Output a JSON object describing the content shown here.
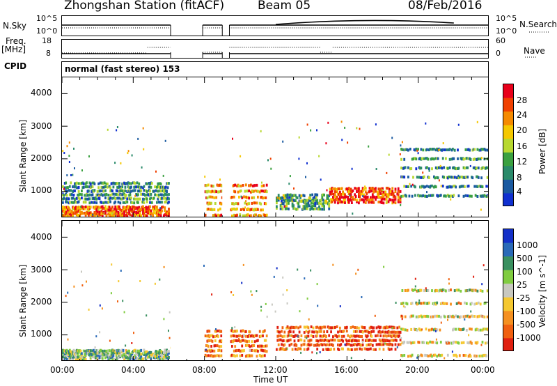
{
  "header": {
    "station": "Zhongshan Station (fitACF)",
    "beam": "Beam 05",
    "date": "08/Feb/2016"
  },
  "left_labels": {
    "nsky": "N.Sky",
    "freq": "Freq.",
    "freq_unit": "[MHz]",
    "cpid": "CPID"
  },
  "right_labels": {
    "nsearch": "N.Search",
    "nave": "Nave"
  },
  "cpid_text": "normal (fast stereo) 153",
  "nsky_ticks": {
    "top": "10^5",
    "bottom": "10^0"
  },
  "nsearch_ticks": {
    "top": "10^5",
    "bottom": "10^0"
  },
  "freq_ticks": {
    "top": "18",
    "bottom": "8"
  },
  "nave_ticks": {
    "top": "60",
    "bottom": "0"
  },
  "power_colorbar": {
    "label": "Power [dB]",
    "ticks": [
      "28",
      "24",
      "20",
      "16",
      "12",
      "8",
      "4"
    ],
    "colors": [
      "#e8001a",
      "#f04000",
      "#f58a00",
      "#f5c800",
      "#b8d830",
      "#3aa040",
      "#2a8a6a",
      "#1a5aa0",
      "#1030d0"
    ]
  },
  "velocity_colorbar": {
    "label": "Velocity [m s^-1]",
    "ticks": [
      "1000",
      "500",
      "100",
      "25",
      "-25",
      "-100",
      "-500",
      "-1000"
    ],
    "colors": [
      "#1430c8",
      "#2a6ab8",
      "#3a9060",
      "#80cc40",
      "#c8c8c0",
      "#f5c830",
      "#f59020",
      "#f06010",
      "#e02010"
    ]
  },
  "x_axis": {
    "label": "Time UT",
    "ticks": [
      "00:00",
      "04:00",
      "08:00",
      "12:00",
      "16:00",
      "20:00",
      "00:00"
    ]
  },
  "y_axis": {
    "label": "Slant Range [km]",
    "ticks": [
      "4000",
      "3000",
      "2000",
      "1000"
    ]
  },
  "chart_data": {
    "type": "heatmap",
    "title": "Zhongshan Station (fitACF)",
    "x_range_hours": [
      0,
      24
    ],
    "y_range_km": [
      180,
      4500
    ],
    "data_gaps_hours": [
      [
        6.1,
        7.9
      ],
      [
        9.0,
        9.4
      ]
    ],
    "power_clusters": [
      {
        "t0": 0.0,
        "t1": 6.0,
        "r0": 200,
        "r1": 500,
        "level": 0.8
      },
      {
        "t0": 0.0,
        "t1": 6.0,
        "r0": 600,
        "r1": 1300,
        "level": 0.3
      },
      {
        "t0": 8.0,
        "t1": 11.5,
        "r0": 200,
        "r1": 1300,
        "level": 0.7
      },
      {
        "t0": 12.0,
        "t1": 15.0,
        "r0": 400,
        "r1": 900,
        "level": 0.35
      },
      {
        "t0": 15.0,
        "t1": 19.0,
        "r0": 600,
        "r1": 1100,
        "level": 0.85
      },
      {
        "t0": 19.0,
        "t1": 24.0,
        "r0": 800,
        "r1": 2500,
        "level": 0.3
      }
    ],
    "velocity_clusters": [
      {
        "t0": 0.0,
        "t1": 6.0,
        "r0": 200,
        "r1": 500,
        "level": 0.6
      },
      {
        "t0": 8.0,
        "t1": 11.5,
        "r0": 300,
        "r1": 1200,
        "level": 0.2
      },
      {
        "t0": 12.0,
        "t1": 19.0,
        "r0": 500,
        "r1": 1300,
        "level": 0.15
      },
      {
        "t0": 19.0,
        "t1": 24.0,
        "r0": 300,
        "r1": 2700,
        "level": 0.45
      }
    ]
  }
}
